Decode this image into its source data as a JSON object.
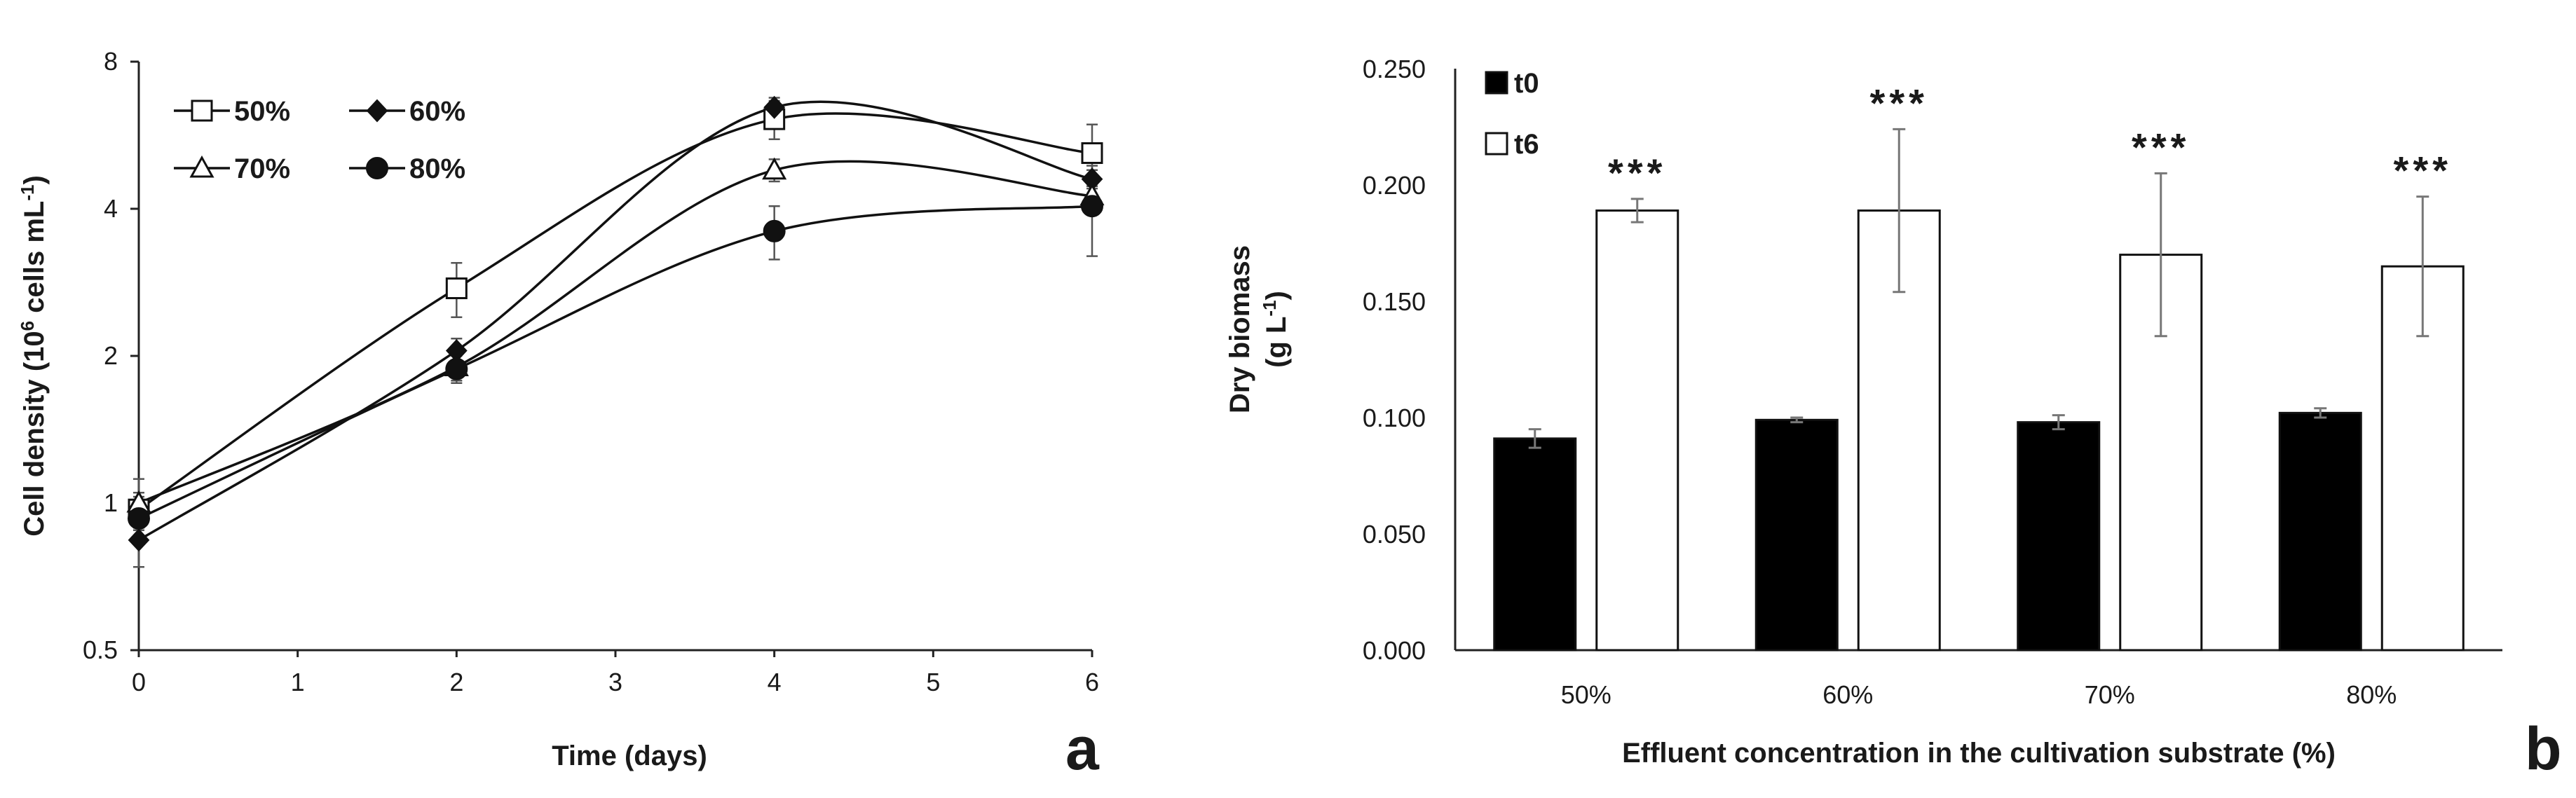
{
  "chart_data": [
    {
      "panel": "a",
      "type": "line",
      "title": "",
      "xlabel": "Time (days)",
      "ylabel_main": "Cell density (10",
      "ylabel_sup1": "6",
      "ylabel_mid": " cells mL",
      "ylabel_sup2": "-1",
      "ylabel_end": ")",
      "yscale": "log2",
      "xlim": [
        0,
        6
      ],
      "ylim": [
        0.5,
        8
      ],
      "xticks": [
        0,
        1,
        2,
        3,
        4,
        5,
        6
      ],
      "xtick_labels": [
        "0",
        "1",
        "2",
        "3",
        "4",
        "5",
        "6"
      ],
      "yticks": [
        0.5,
        1,
        2,
        4,
        8
      ],
      "ytick_labels": [
        "0.5",
        "1",
        "2",
        "4",
        "8"
      ],
      "x": [
        0,
        2,
        4,
        6
      ],
      "series": [
        {
          "name": "50%",
          "marker": "square-open",
          "values": [
            0.97,
            2.75,
            6.1,
            5.2
          ],
          "errors": [
            0.08,
            0.35,
            0.55,
            0.75
          ]
        },
        {
          "name": "60%",
          "marker": "diamond-filled",
          "values": [
            0.84,
            2.05,
            6.45,
            4.6
          ],
          "errors": [
            0.1,
            0.12,
            0.3,
            0.2
          ]
        },
        {
          "name": "70%",
          "marker": "triangle-open",
          "values": [
            1.0,
            1.9,
            4.8,
            4.25
          ],
          "errors": [
            0.12,
            0.12,
            0.25,
            0.2
          ]
        },
        {
          "name": "80%",
          "marker": "circle-filled",
          "values": [
            0.93,
            1.88,
            3.6,
            4.05
          ],
          "errors": [
            0.1,
            0.12,
            0.45,
            0.85
          ]
        }
      ]
    },
    {
      "panel": "b",
      "type": "bar",
      "title": "",
      "xlabel": "Effluent concentration in the cultivation substrate (%)",
      "ylabel_line1": "Dry biomass",
      "ylabel_line2": "(g L",
      "ylabel_sup": "-1",
      "ylabel_end": ")",
      "categories": [
        "50%",
        "60%",
        "70%",
        "80%"
      ],
      "ylim": [
        0,
        0.25
      ],
      "yticks": [
        0.0,
        0.05,
        0.1,
        0.15,
        0.2,
        0.25
      ],
      "ytick_labels": [
        "0.000",
        "0.050",
        "0.100",
        "0.150",
        "0.200",
        "0.250"
      ],
      "series": [
        {
          "name": "t0",
          "color": "#000000",
          "values": [
            0.091,
            0.099,
            0.098,
            0.102
          ],
          "errors": [
            0.004,
            0.001,
            0.003,
            0.002
          ]
        },
        {
          "name": "t6",
          "color": "#ffffff",
          "values": [
            0.189,
            0.189,
            0.17,
            0.165
          ],
          "errors": [
            0.005,
            0.035,
            0.035,
            0.03
          ]
        }
      ],
      "significance": [
        "***",
        "***",
        "***",
        "***"
      ]
    }
  ]
}
